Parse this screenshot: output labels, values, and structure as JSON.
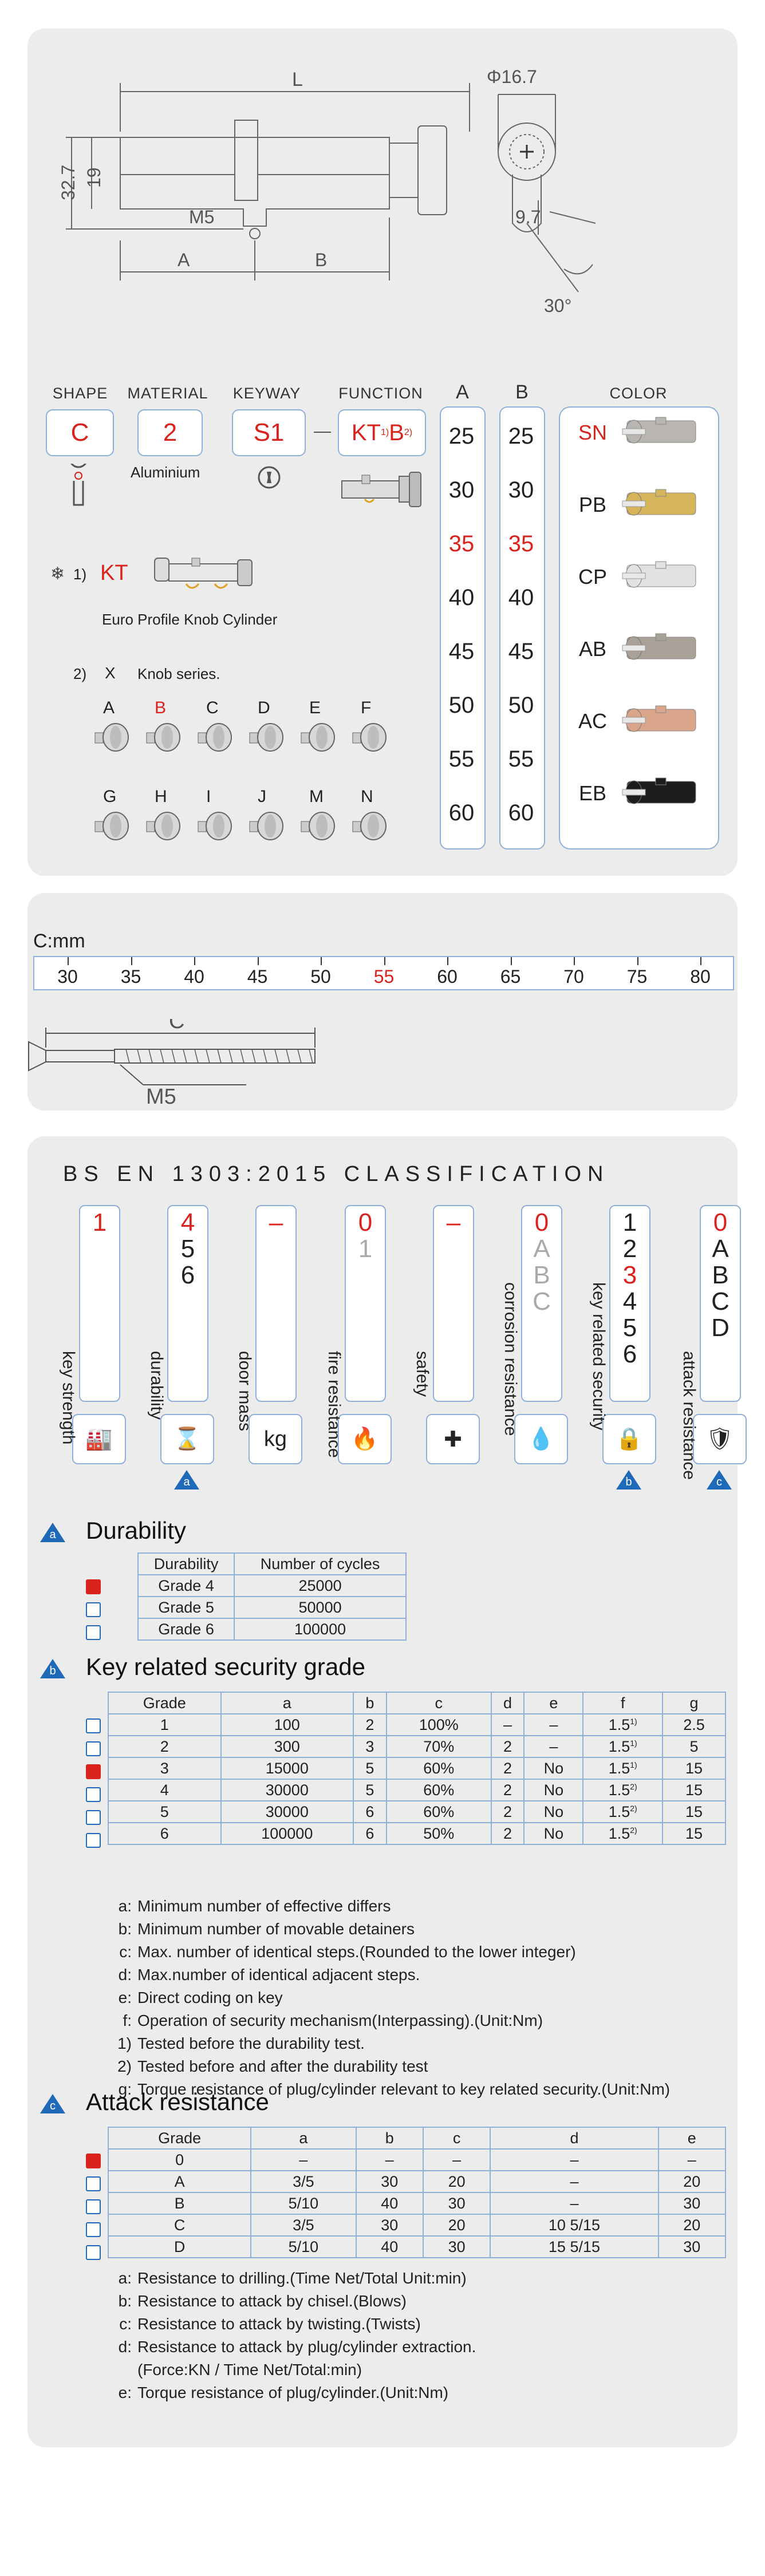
{
  "drawing": {
    "dim_L": "L",
    "dim_phi": "Φ16.7",
    "dim_32": "32.7",
    "dim_19": "19",
    "dim_M5": "M5",
    "dim_97": "9.7",
    "dim_30": "30°",
    "dim_A": "A",
    "dim_B": "B"
  },
  "spec": {
    "headers": {
      "shape": "SHAPE",
      "material": "MATERIAL",
      "keyway": "KEYWAY",
      "function": "FUNCTION",
      "a": "A",
      "b": "B",
      "color": "COLOR"
    },
    "shape": "C",
    "material": "2",
    "material_name": "Aluminium",
    "keyway": "S1",
    "function": "KT",
    "function_sup1": "1)",
    "function_b": "B",
    "function_sup2": "2)",
    "note1_marker": "1)",
    "note1_code": "KT",
    "note1_text": "Euro Profile Knob Cylinder",
    "note2_marker": "2)",
    "note2_code": "X",
    "note2_text": "Knob series.",
    "knobs_row1": [
      "A",
      "B",
      "C",
      "D",
      "E",
      "F"
    ],
    "knobs_row2": [
      "G",
      "H",
      "I",
      "J",
      "M",
      "N"
    ],
    "a_values": [
      "25",
      "30",
      "35",
      "40",
      "45",
      "50",
      "55",
      "60"
    ],
    "b_values": [
      "25",
      "30",
      "35",
      "40",
      "45",
      "50",
      "55",
      "60"
    ],
    "highlight": "35",
    "colors": [
      {
        "code": "SN",
        "fill": "#b9b6b2"
      },
      {
        "code": "PB",
        "fill": "#d6b45a"
      },
      {
        "code": "CP",
        "fill": "#e2e2e2"
      },
      {
        "code": "AB",
        "fill": "#a9a097"
      },
      {
        "code": "AC",
        "fill": "#d9a58b"
      },
      {
        "code": "EB",
        "fill": "#1d1d1d"
      }
    ]
  },
  "screw": {
    "label": "C:mm",
    "values": [
      "30",
      "35",
      "40",
      "45",
      "50",
      "55",
      "60",
      "65",
      "70",
      "75",
      "80"
    ],
    "highlight": "55",
    "c_label": "C",
    "m5_label": "M5"
  },
  "classification": {
    "title": "BS EN 1303:2015 CLASSIFICATION",
    "columns": [
      {
        "label": "key strength",
        "values": [
          "1"
        ],
        "red_index": 0
      },
      {
        "label": "durability",
        "values": [
          "4",
          "5",
          "6"
        ],
        "red_index": 0,
        "badge": "a"
      },
      {
        "label": "door mass",
        "values": [
          "–"
        ],
        "red_index": 0
      },
      {
        "label": "fire resistance",
        "values": [
          "0",
          "1"
        ],
        "red_index": 0
      },
      {
        "label": "safety",
        "values": [
          "–"
        ],
        "red_index": 0
      },
      {
        "label": "corrosion resistance",
        "values": [
          "0",
          "A",
          "B",
          "C"
        ],
        "red_index": 0
      },
      {
        "label": "key related security",
        "values": [
          "1",
          "2",
          "3",
          "4",
          "5",
          "6"
        ],
        "red_index": 2,
        "badge": "b"
      },
      {
        "label": "attack resistance",
        "values": [
          "0",
          "A",
          "B",
          "C",
          "D"
        ],
        "red_index": 0,
        "badge": "c"
      }
    ]
  },
  "durability": {
    "badge": "a",
    "title": "Durability",
    "headers": [
      "Durability",
      "Number of cycles"
    ],
    "rows": [
      [
        "Grade 4",
        "25000"
      ],
      [
        "Grade 5",
        "50000"
      ],
      [
        "Grade 6",
        "100000"
      ]
    ],
    "checked": 0
  },
  "krs": {
    "badge": "b",
    "title": "Key related security grade",
    "headers": [
      "Grade",
      "a",
      "b",
      "c",
      "d",
      "e",
      "f",
      "g"
    ],
    "rows": [
      [
        "1",
        "100",
        "2",
        "100%",
        "–",
        "–",
        "1.5",
        "1)",
        "2.5"
      ],
      [
        "2",
        "300",
        "3",
        "70%",
        "2",
        "–",
        "1.5",
        "1)",
        "5"
      ],
      [
        "3",
        "15000",
        "5",
        "60%",
        "2",
        "No",
        "1.5",
        "1)",
        "15"
      ],
      [
        "4",
        "30000",
        "5",
        "60%",
        "2",
        "No",
        "1.5",
        "2)",
        "15"
      ],
      [
        "5",
        "30000",
        "6",
        "60%",
        "2",
        "No",
        "1.5",
        "2)",
        "15"
      ],
      [
        "6",
        "100000",
        "6",
        "50%",
        "2",
        "No",
        "1.5",
        "2)",
        "15"
      ]
    ],
    "checked": 2,
    "legend": [
      {
        "k": "a:",
        "t": "Minimum number of effective differs"
      },
      {
        "k": "b:",
        "t": "Minimum number of movable detainers"
      },
      {
        "k": "c:",
        "t": "Max. number of identical steps.(Rounded to the lower integer)"
      },
      {
        "k": "d:",
        "t": "Max.number of identical adjacent steps."
      },
      {
        "k": "e:",
        "t": "Direct coding on key"
      },
      {
        "k": "f:",
        "t": "Operation of security mechanism(Interpassing).(Unit:Nm)"
      },
      {
        "k": "1)",
        "t": "Tested before the durability test."
      },
      {
        "k": "2)",
        "t": "Tested before and after the durability test"
      },
      {
        "k": "g:",
        "t": "Torque resistance of plug/cylinder relevant to key related security.(Unit:Nm)"
      }
    ]
  },
  "attack": {
    "badge": "c",
    "title": "Attack resistance",
    "headers": [
      "Grade",
      "a",
      "b",
      "c",
      "d",
      "e"
    ],
    "rows": [
      [
        "0",
        "–",
        "–",
        "–",
        "–",
        "–"
      ],
      [
        "A",
        "3/5",
        "30",
        "20",
        "–",
        "20"
      ],
      [
        "B",
        "5/10",
        "40",
        "30",
        "–",
        "30"
      ],
      [
        "C",
        "3/5",
        "30",
        "20",
        "10 5/15",
        "20"
      ],
      [
        "D",
        "5/10",
        "40",
        "30",
        "15 5/15",
        "30"
      ]
    ],
    "checked": 0,
    "legend": [
      {
        "k": "a:",
        "t": "Resistance to drilling.(Time Net/Total Unit:min)"
      },
      {
        "k": "b:",
        "t": "Resistance to attack by chisel.(Blows)"
      },
      {
        "k": "c:",
        "t": "Resistance to attack by twisting.(Twists)"
      },
      {
        "k": "d:",
        "t": "Resistance to attack by plug/cylinder extraction."
      },
      {
        "k": "",
        "t": "(Force:KN  /  Time Net/Total:min)"
      },
      {
        "k": "e:",
        "t": "Torque resistance of plug/cylinder.(Unit:Nm)"
      }
    ]
  }
}
